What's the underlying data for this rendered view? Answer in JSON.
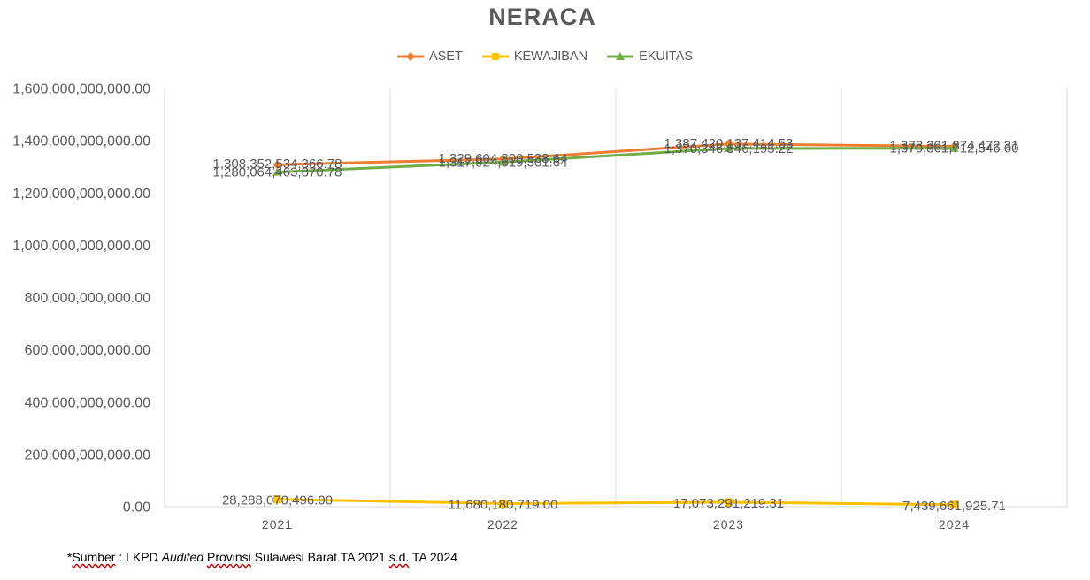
{
  "chart_data": {
    "type": "line",
    "title": "NERACA",
    "categories": [
      "2021",
      "2022",
      "2023",
      "2024"
    ],
    "ylim": [
      0,
      1600000000000
    ],
    "y_ticks": [
      "0.00",
      "200,000,000,000.00",
      "400,000,000,000.00",
      "600,000,000,000.00",
      "800,000,000,000.00",
      "1,000,000,000,000.00",
      "1,200,000,000,000.00",
      "1,400,000,000,000.00",
      "1,600,000,000,000.00"
    ],
    "y_tick_values": [
      0,
      200000000000,
      400000000000,
      600000000000,
      800000000000,
      1000000000000,
      1200000000000,
      1400000000000,
      1600000000000
    ],
    "grid": "vertical",
    "legend_position": "top",
    "series": [
      {
        "name": "ASET",
        "color": "#ED7D31",
        "marker": "diamond",
        "values": [
          1308352534366.78,
          1329604800538.64,
          1387420137414.53,
          1378301874472.31
        ],
        "labels": [
          "1,308,352,534,366.78",
          "1,329,604,800,538.64",
          "1,387,420,137,414.53",
          "1,378,301,874,472.31"
        ]
      },
      {
        "name": "KEWAJIBAN",
        "color": "#FFC000",
        "marker": "square",
        "values": [
          28288070496.0,
          11680180719.0,
          17073291219.31,
          7439661925.71
        ],
        "labels": [
          "28,288,070,496.00",
          "11,680,180,719.00",
          "17,073,291,219.31",
          "7,439,661,925.71"
        ]
      },
      {
        "name": "EKUITAS",
        "color": "#70AD47",
        "marker": "triangle",
        "values": [
          1280064463870.78,
          1317924619301.64,
          1370346846195.22,
          1370861712546.6
        ],
        "labels": [
          "1,280,064,463,870.78",
          "1,317,924,619,301.64",
          "1,370,346,846,195.22",
          "1,370,861,712,546.60"
        ]
      }
    ]
  },
  "footnote": {
    "prefix": "*",
    "sumber": "Sumber",
    "colon": " : LKPD ",
    "audited": "Audited",
    "space": " ",
    "provinsi": "Provinsi",
    "middle": " Sulawesi Barat TA 2021 ",
    "sd": "s.d.",
    "end": " TA 2024"
  }
}
